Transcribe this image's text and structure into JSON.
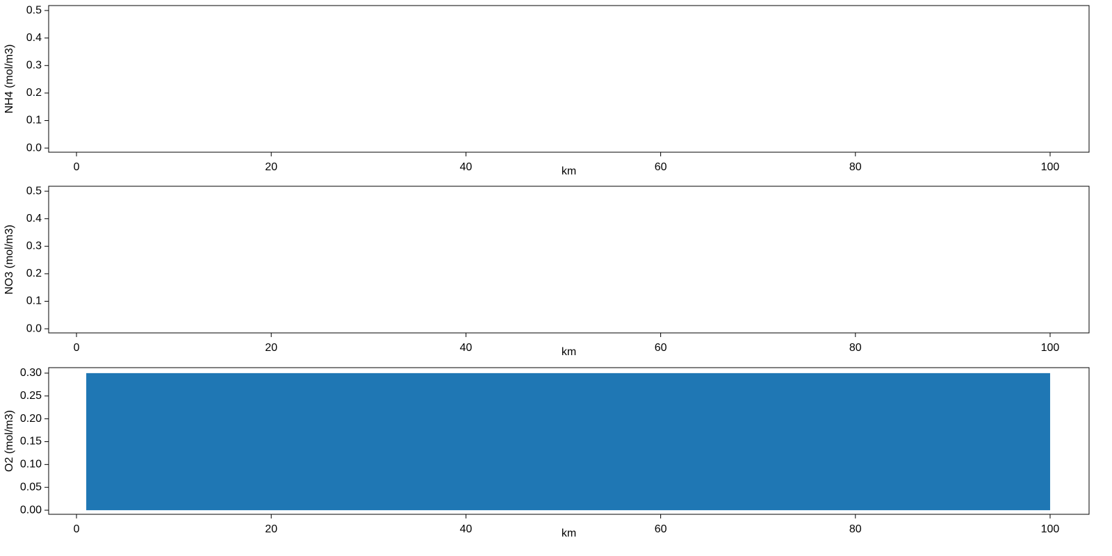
{
  "chart_data": [
    {
      "type": "line",
      "xlabel": "km",
      "ylabel": "NH4 (mol/m3)",
      "xlim": [
        -2.86,
        104.0
      ],
      "ylim": [
        -0.015,
        0.518
      ],
      "xticks": [
        0,
        20,
        40,
        60,
        80,
        100
      ],
      "yticks": [
        {
          "value": 0,
          "label": "0.0"
        },
        0.1,
        0.2,
        0.3,
        0.4,
        0.5
      ]
    },
    {
      "type": "line",
      "xlabel": "km",
      "ylabel": "NO3 (mol/m3)",
      "xlim": [
        -2.86,
        104.0
      ],
      "ylim": [
        -0.015,
        0.518
      ],
      "xticks": [
        0,
        20,
        40,
        60,
        80,
        100
      ],
      "yticks": [
        {
          "value": 0,
          "label": "0.0"
        },
        0.1,
        0.2,
        0.3,
        0.4,
        0.5
      ]
    },
    {
      "type": "area",
      "xlabel": "km",
      "ylabel": "O2 (mol/m3)",
      "x": [
        1,
        100
      ],
      "values": [
        0.3,
        0.3
      ],
      "color": "#1f77b4",
      "xlim": [
        -2.86,
        104.0
      ],
      "ylim": [
        -0.009,
        0.312
      ],
      "xticks": [
        0,
        20,
        40,
        60,
        80,
        100
      ],
      "yticks": [
        {
          "value": 0,
          "label": "0.00"
        },
        {
          "value": 0.05,
          "label": "0.05"
        },
        {
          "value": 0.1,
          "label": "0.10"
        },
        {
          "value": 0.15,
          "label": "0.15"
        },
        {
          "value": 0.2,
          "label": "0.20"
        },
        {
          "value": 0.25,
          "label": "0.25"
        },
        {
          "value": 0.3,
          "label": "0.30"
        }
      ]
    }
  ]
}
